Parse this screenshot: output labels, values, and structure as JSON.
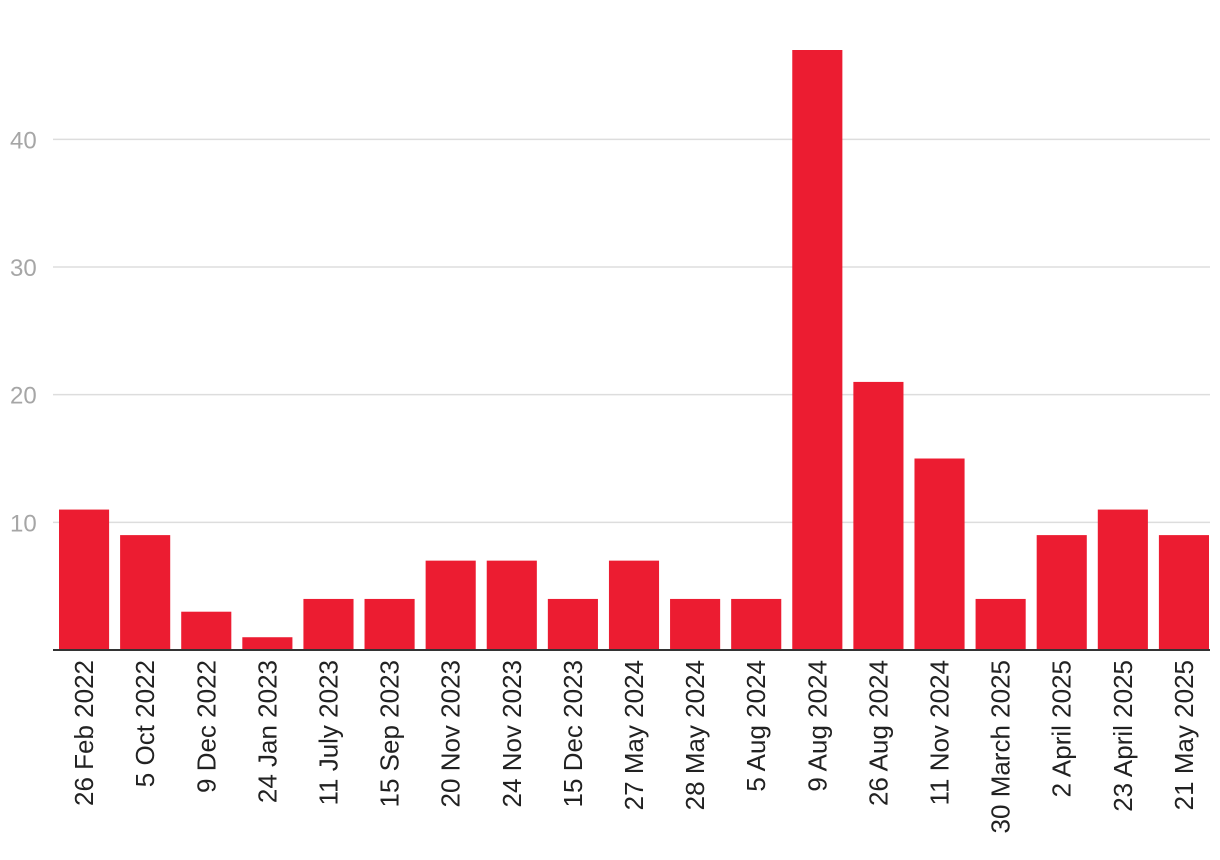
{
  "chart_data": {
    "type": "bar",
    "title": "",
    "xlabel": "",
    "ylabel": "",
    "categories": [
      "26 Feb 2022",
      "5 Oct 2022",
      "9 Dec 2022",
      "24 Jan 2023",
      "11 July 2023",
      "15 Sep 2023",
      "20 Nov 2023",
      "24 Nov 2023",
      "15 Dec 2023",
      "27 May 2024",
      "28 May 2024",
      "5 Aug 2024",
      "9 Aug 2024",
      "26 Aug 2024",
      "11 Nov 2024",
      "30 March 2025",
      "2 April 2025",
      "23 April 2025",
      "21 May 2025"
    ],
    "values": [
      11,
      9,
      3,
      1,
      4,
      4,
      7,
      7,
      4,
      7,
      4,
      4,
      47,
      21,
      15,
      4,
      9,
      11,
      9
    ],
    "ylim": [
      0,
      47
    ],
    "yticks": [
      "10",
      "20",
      "30",
      "40"
    ],
    "grid": true,
    "legend": "none",
    "bar_color": "#ec1c31"
  }
}
